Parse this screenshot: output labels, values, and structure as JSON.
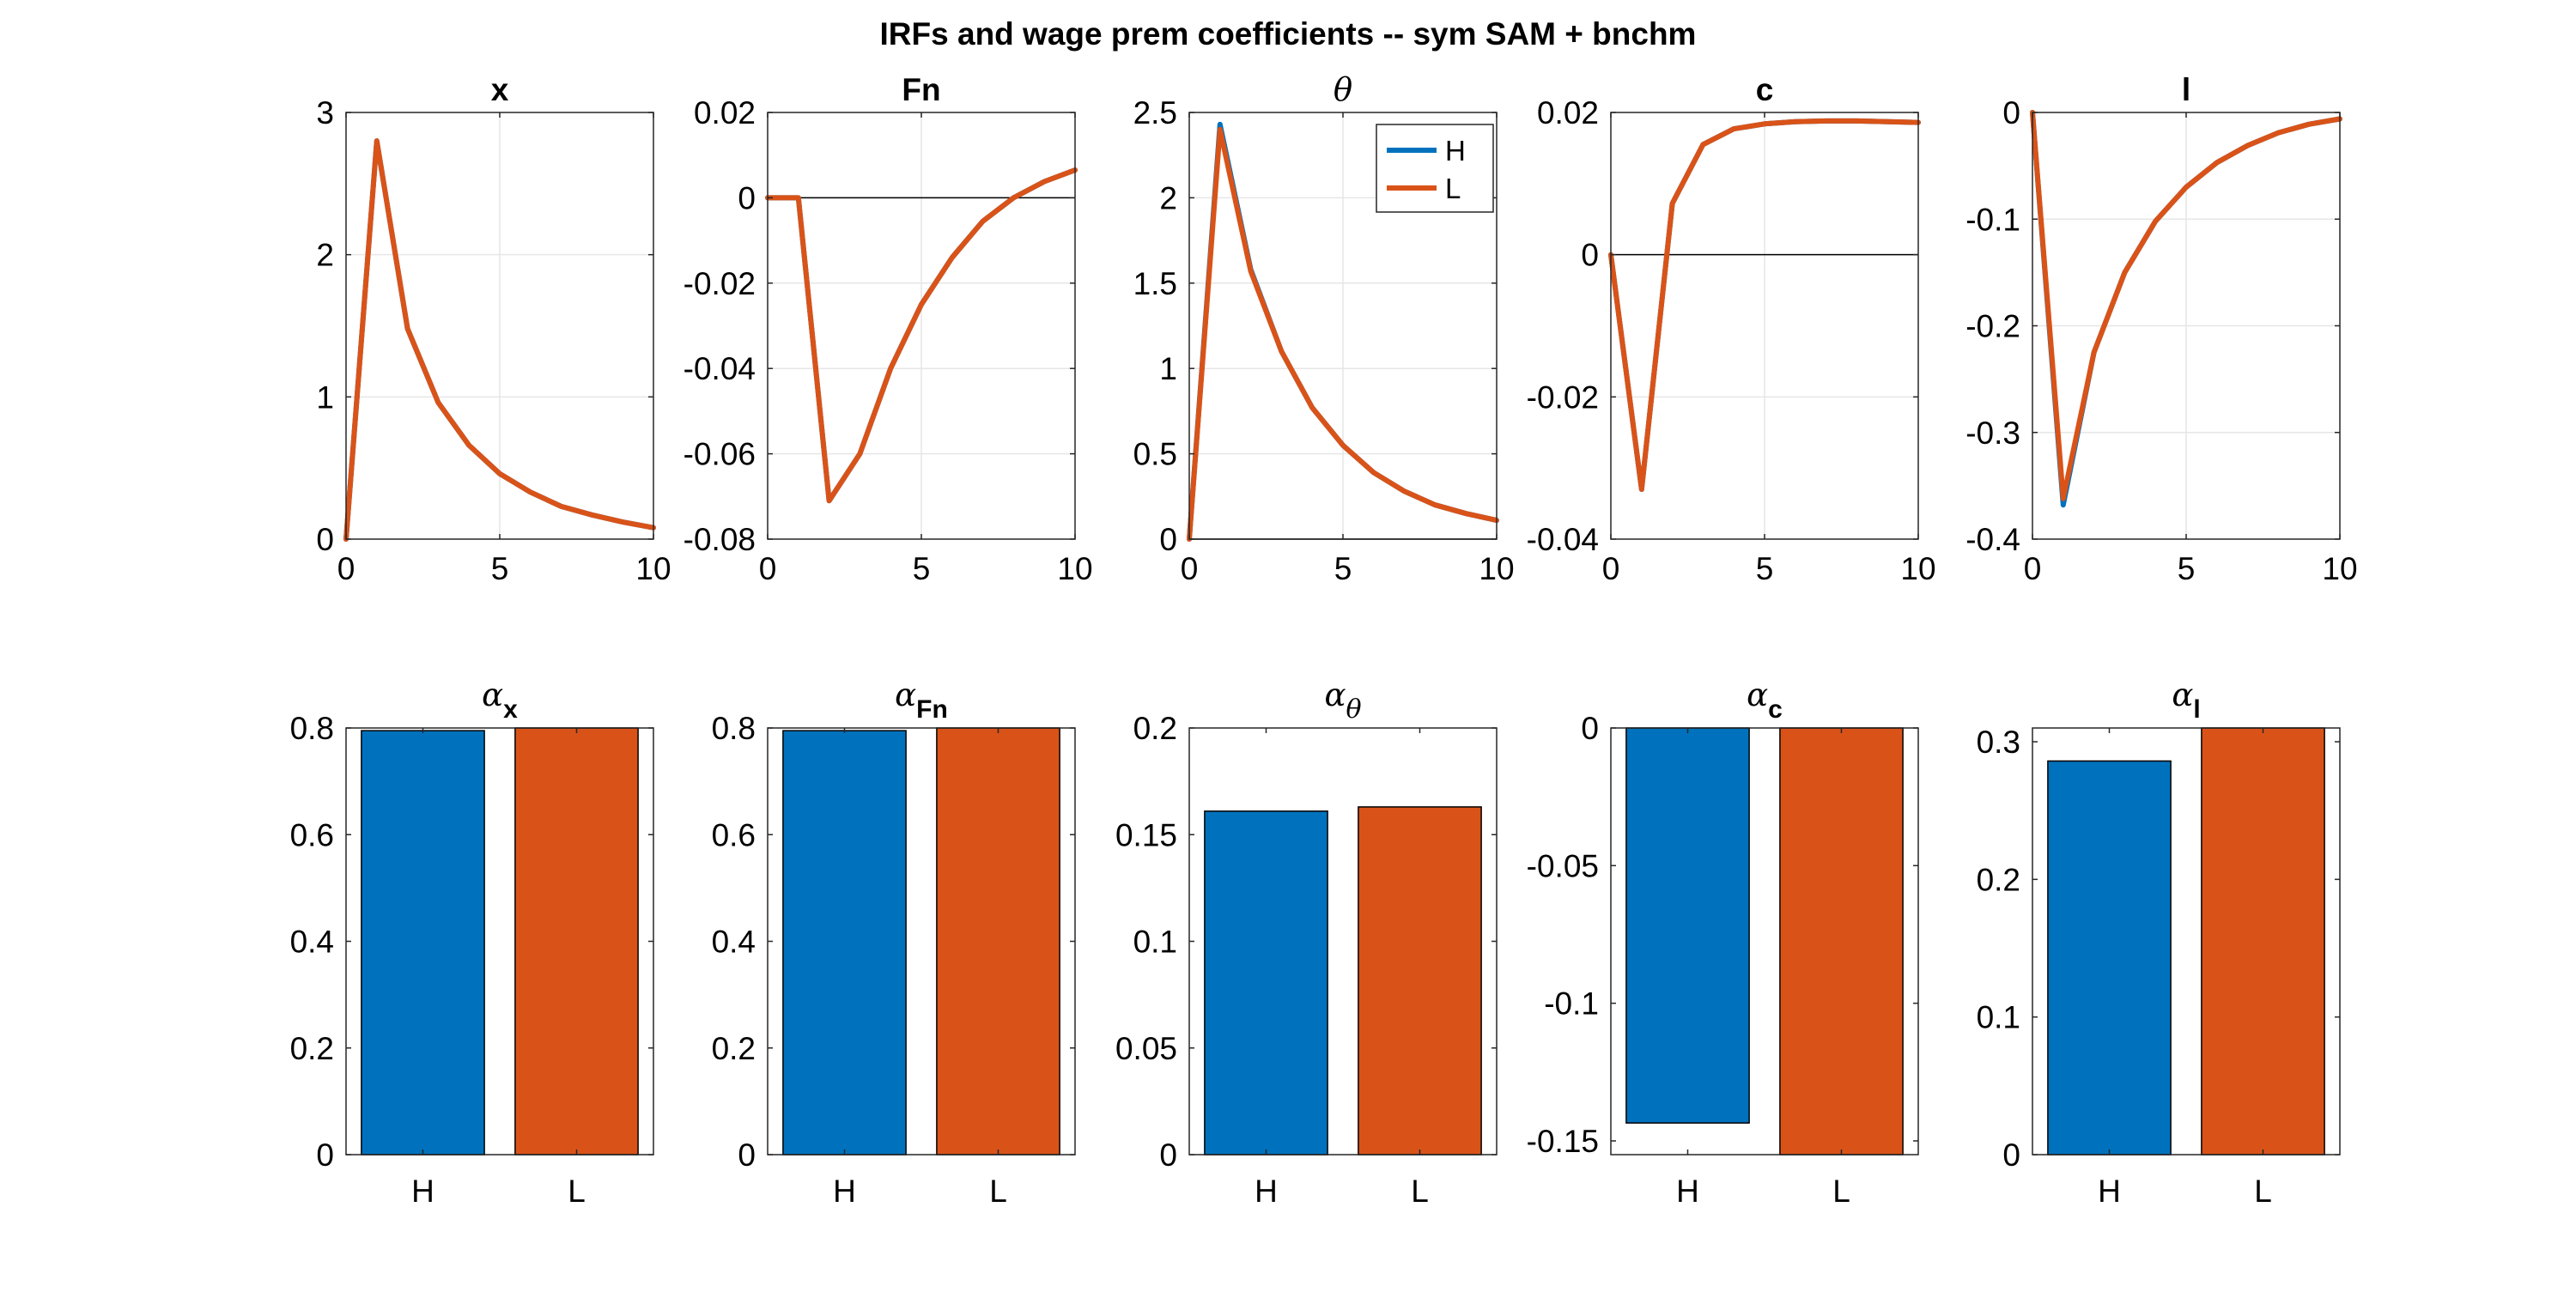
{
  "figure": {
    "title": "IRFs and wage prem coefficients -- sym SAM + bnchm"
  },
  "legend": {
    "items": [
      "H",
      "L"
    ],
    "placement": "top-right of panel θ"
  },
  "colors": {
    "H": "#0072BD",
    "L": "#D95319",
    "grid": "#e6e6e6",
    "axis": "#262626"
  },
  "chart_data": [
    {
      "type": "line",
      "title": "x",
      "title_symbol": false,
      "xlim": [
        0,
        10
      ],
      "ylim": [
        0,
        3
      ],
      "xticks": [
        0,
        5,
        10
      ],
      "yticks": [
        0,
        1,
        2,
        3
      ],
      "xtick_labels": [
        "0",
        "5",
        "10"
      ],
      "ytick_labels": [
        "0",
        "1",
        "2",
        "3"
      ],
      "zero_line": false,
      "grid": true,
      "x": [
        0,
        1,
        2,
        3,
        4,
        5,
        6,
        7,
        8,
        9,
        10
      ],
      "series": [
        {
          "key": "H",
          "values": [
            0,
            2.8,
            1.48,
            0.96,
            0.66,
            0.46,
            0.33,
            0.23,
            0.17,
            0.12,
            0.08
          ]
        },
        {
          "key": "L",
          "values": [
            0,
            2.8,
            1.48,
            0.96,
            0.66,
            0.46,
            0.33,
            0.23,
            0.17,
            0.12,
            0.08
          ]
        }
      ]
    },
    {
      "type": "line",
      "title": "Fn",
      "title_symbol": false,
      "xlim": [
        0,
        10
      ],
      "ylim": [
        -0.08,
        0.02
      ],
      "xticks": [
        0,
        5,
        10
      ],
      "yticks": [
        -0.08,
        -0.06,
        -0.04,
        -0.02,
        0,
        0.02
      ],
      "xtick_labels": [
        "0",
        "5",
        "10"
      ],
      "ytick_labels": [
        "-0.08",
        "-0.06",
        "-0.04",
        "-0.02",
        "0",
        "0.02"
      ],
      "zero_line": true,
      "grid": true,
      "x": [
        0,
        1,
        2,
        3,
        4,
        5,
        6,
        7,
        8,
        9,
        10
      ],
      "series": [
        {
          "key": "H",
          "values": [
            0,
            0,
            -0.071,
            -0.06,
            -0.04,
            -0.025,
            -0.014,
            -0.0055,
            0,
            0.0038,
            0.0065
          ]
        },
        {
          "key": "L",
          "values": [
            0,
            0,
            -0.071,
            -0.06,
            -0.04,
            -0.025,
            -0.014,
            -0.0055,
            0,
            0.0038,
            0.0065
          ]
        }
      ]
    },
    {
      "type": "line",
      "title": "θ",
      "title_symbol": true,
      "xlim": [
        0,
        10
      ],
      "ylim": [
        0,
        2.5
      ],
      "xticks": [
        0,
        5,
        10
      ],
      "yticks": [
        0,
        0.5,
        1,
        1.5,
        2,
        2.5
      ],
      "xtick_labels": [
        "0",
        "5",
        "10"
      ],
      "ytick_labels": [
        "0",
        "0.5",
        "1",
        "1.5",
        "2",
        "2.5"
      ],
      "zero_line": true,
      "grid": true,
      "legend": true,
      "x": [
        0,
        1,
        2,
        3,
        4,
        5,
        6,
        7,
        8,
        9,
        10
      ],
      "series": [
        {
          "key": "H",
          "values": [
            0,
            2.43,
            1.58,
            1.1,
            0.77,
            0.55,
            0.39,
            0.28,
            0.2,
            0.15,
            0.11
          ]
        },
        {
          "key": "L",
          "values": [
            0,
            2.4,
            1.57,
            1.1,
            0.77,
            0.55,
            0.39,
            0.28,
            0.2,
            0.15,
            0.11
          ]
        }
      ]
    },
    {
      "type": "line",
      "title": "c",
      "title_symbol": false,
      "xlim": [
        0,
        10
      ],
      "ylim": [
        -0.04,
        0.02
      ],
      "xticks": [
        0,
        5,
        10
      ],
      "yticks": [
        -0.04,
        -0.02,
        0,
        0.02
      ],
      "xtick_labels": [
        "0",
        "5",
        "10"
      ],
      "ytick_labels": [
        "-0.04",
        "-0.02",
        "0",
        "0.02"
      ],
      "zero_line": true,
      "grid": true,
      "x": [
        0,
        1,
        2,
        3,
        4,
        5,
        6,
        7,
        8,
        9,
        10
      ],
      "series": [
        {
          "key": "H",
          "values": [
            0,
            -0.033,
            0.0072,
            0.0155,
            0.0177,
            0.0184,
            0.0187,
            0.0188,
            0.0188,
            0.0187,
            0.0186
          ]
        },
        {
          "key": "L",
          "values": [
            0,
            -0.033,
            0.0072,
            0.0155,
            0.0177,
            0.0184,
            0.0187,
            0.0188,
            0.0188,
            0.0187,
            0.0186
          ]
        }
      ]
    },
    {
      "type": "line",
      "title": "l",
      "title_symbol": false,
      "xlim": [
        0,
        10
      ],
      "ylim": [
        -0.4,
        0
      ],
      "xticks": [
        0,
        5,
        10
      ],
      "yticks": [
        -0.4,
        -0.3,
        -0.2,
        -0.1,
        0
      ],
      "xtick_labels": [
        "0",
        "5",
        "10"
      ],
      "ytick_labels": [
        "-0.4",
        "-0.3",
        "-0.2",
        "-0.1",
        "0"
      ],
      "zero_line": false,
      "grid": true,
      "x": [
        0,
        1,
        2,
        3,
        4,
        5,
        6,
        7,
        8,
        9,
        10
      ],
      "series": [
        {
          "key": "H",
          "values": [
            0,
            -0.368,
            -0.225,
            -0.15,
            -0.102,
            -0.07,
            -0.047,
            -0.031,
            -0.019,
            -0.011,
            -0.006
          ]
        },
        {
          "key": "L",
          "values": [
            0,
            -0.362,
            -0.225,
            -0.15,
            -0.102,
            -0.07,
            -0.047,
            -0.031,
            -0.019,
            -0.011,
            -0.006
          ]
        }
      ]
    },
    {
      "type": "bar",
      "title_symbol": "α",
      "title_sub": "x",
      "categories": [
        "H",
        "L"
      ],
      "values": [
        0.795,
        0.8
      ],
      "ylim": [
        0,
        0.8
      ],
      "yticks": [
        0,
        0.2,
        0.4,
        0.6,
        0.8
      ],
      "ytick_labels": [
        "0",
        "0.2",
        "0.4",
        "0.6",
        "0.8"
      ],
      "grid": false
    },
    {
      "type": "bar",
      "title_symbol": "α",
      "title_sub": "Fn",
      "categories": [
        "H",
        "L"
      ],
      "values": [
        0.795,
        0.8
      ],
      "ylim": [
        0,
        0.8
      ],
      "yticks": [
        0,
        0.2,
        0.4,
        0.6,
        0.8
      ],
      "ytick_labels": [
        "0",
        "0.2",
        "0.4",
        "0.6",
        "0.8"
      ],
      "grid": false
    },
    {
      "type": "bar",
      "title_symbol": "α",
      "title_sub": "θ",
      "title_sub_symbol": true,
      "categories": [
        "H",
        "L"
      ],
      "values": [
        0.161,
        0.163
      ],
      "ylim": [
        0,
        0.2
      ],
      "yticks": [
        0,
        0.05,
        0.1,
        0.15,
        0.2
      ],
      "ytick_labels": [
        "0",
        "0.05",
        "0.1",
        "0.15",
        "0.2"
      ],
      "grid": false
    },
    {
      "type": "bar",
      "title_symbol": "α",
      "title_sub": "c",
      "categories": [
        "H",
        "L"
      ],
      "values": [
        -0.1435,
        -0.155
      ],
      "ylim": [
        -0.155,
        0
      ],
      "yticks": [
        -0.15,
        -0.1,
        -0.05,
        0
      ],
      "ytick_labels": [
        "-0.15",
        "-0.1",
        "-0.05",
        "0"
      ],
      "grid": false
    },
    {
      "type": "bar",
      "title_symbol": "α",
      "title_sub": "l",
      "categories": [
        "H",
        "L"
      ],
      "values": [
        0.286,
        0.31
      ],
      "ylim": [
        0,
        0.31
      ],
      "yticks": [
        0,
        0.1,
        0.2,
        0.3
      ],
      "ytick_labels": [
        "0",
        "0.1",
        "0.2",
        "0.3"
      ],
      "grid": false
    }
  ]
}
